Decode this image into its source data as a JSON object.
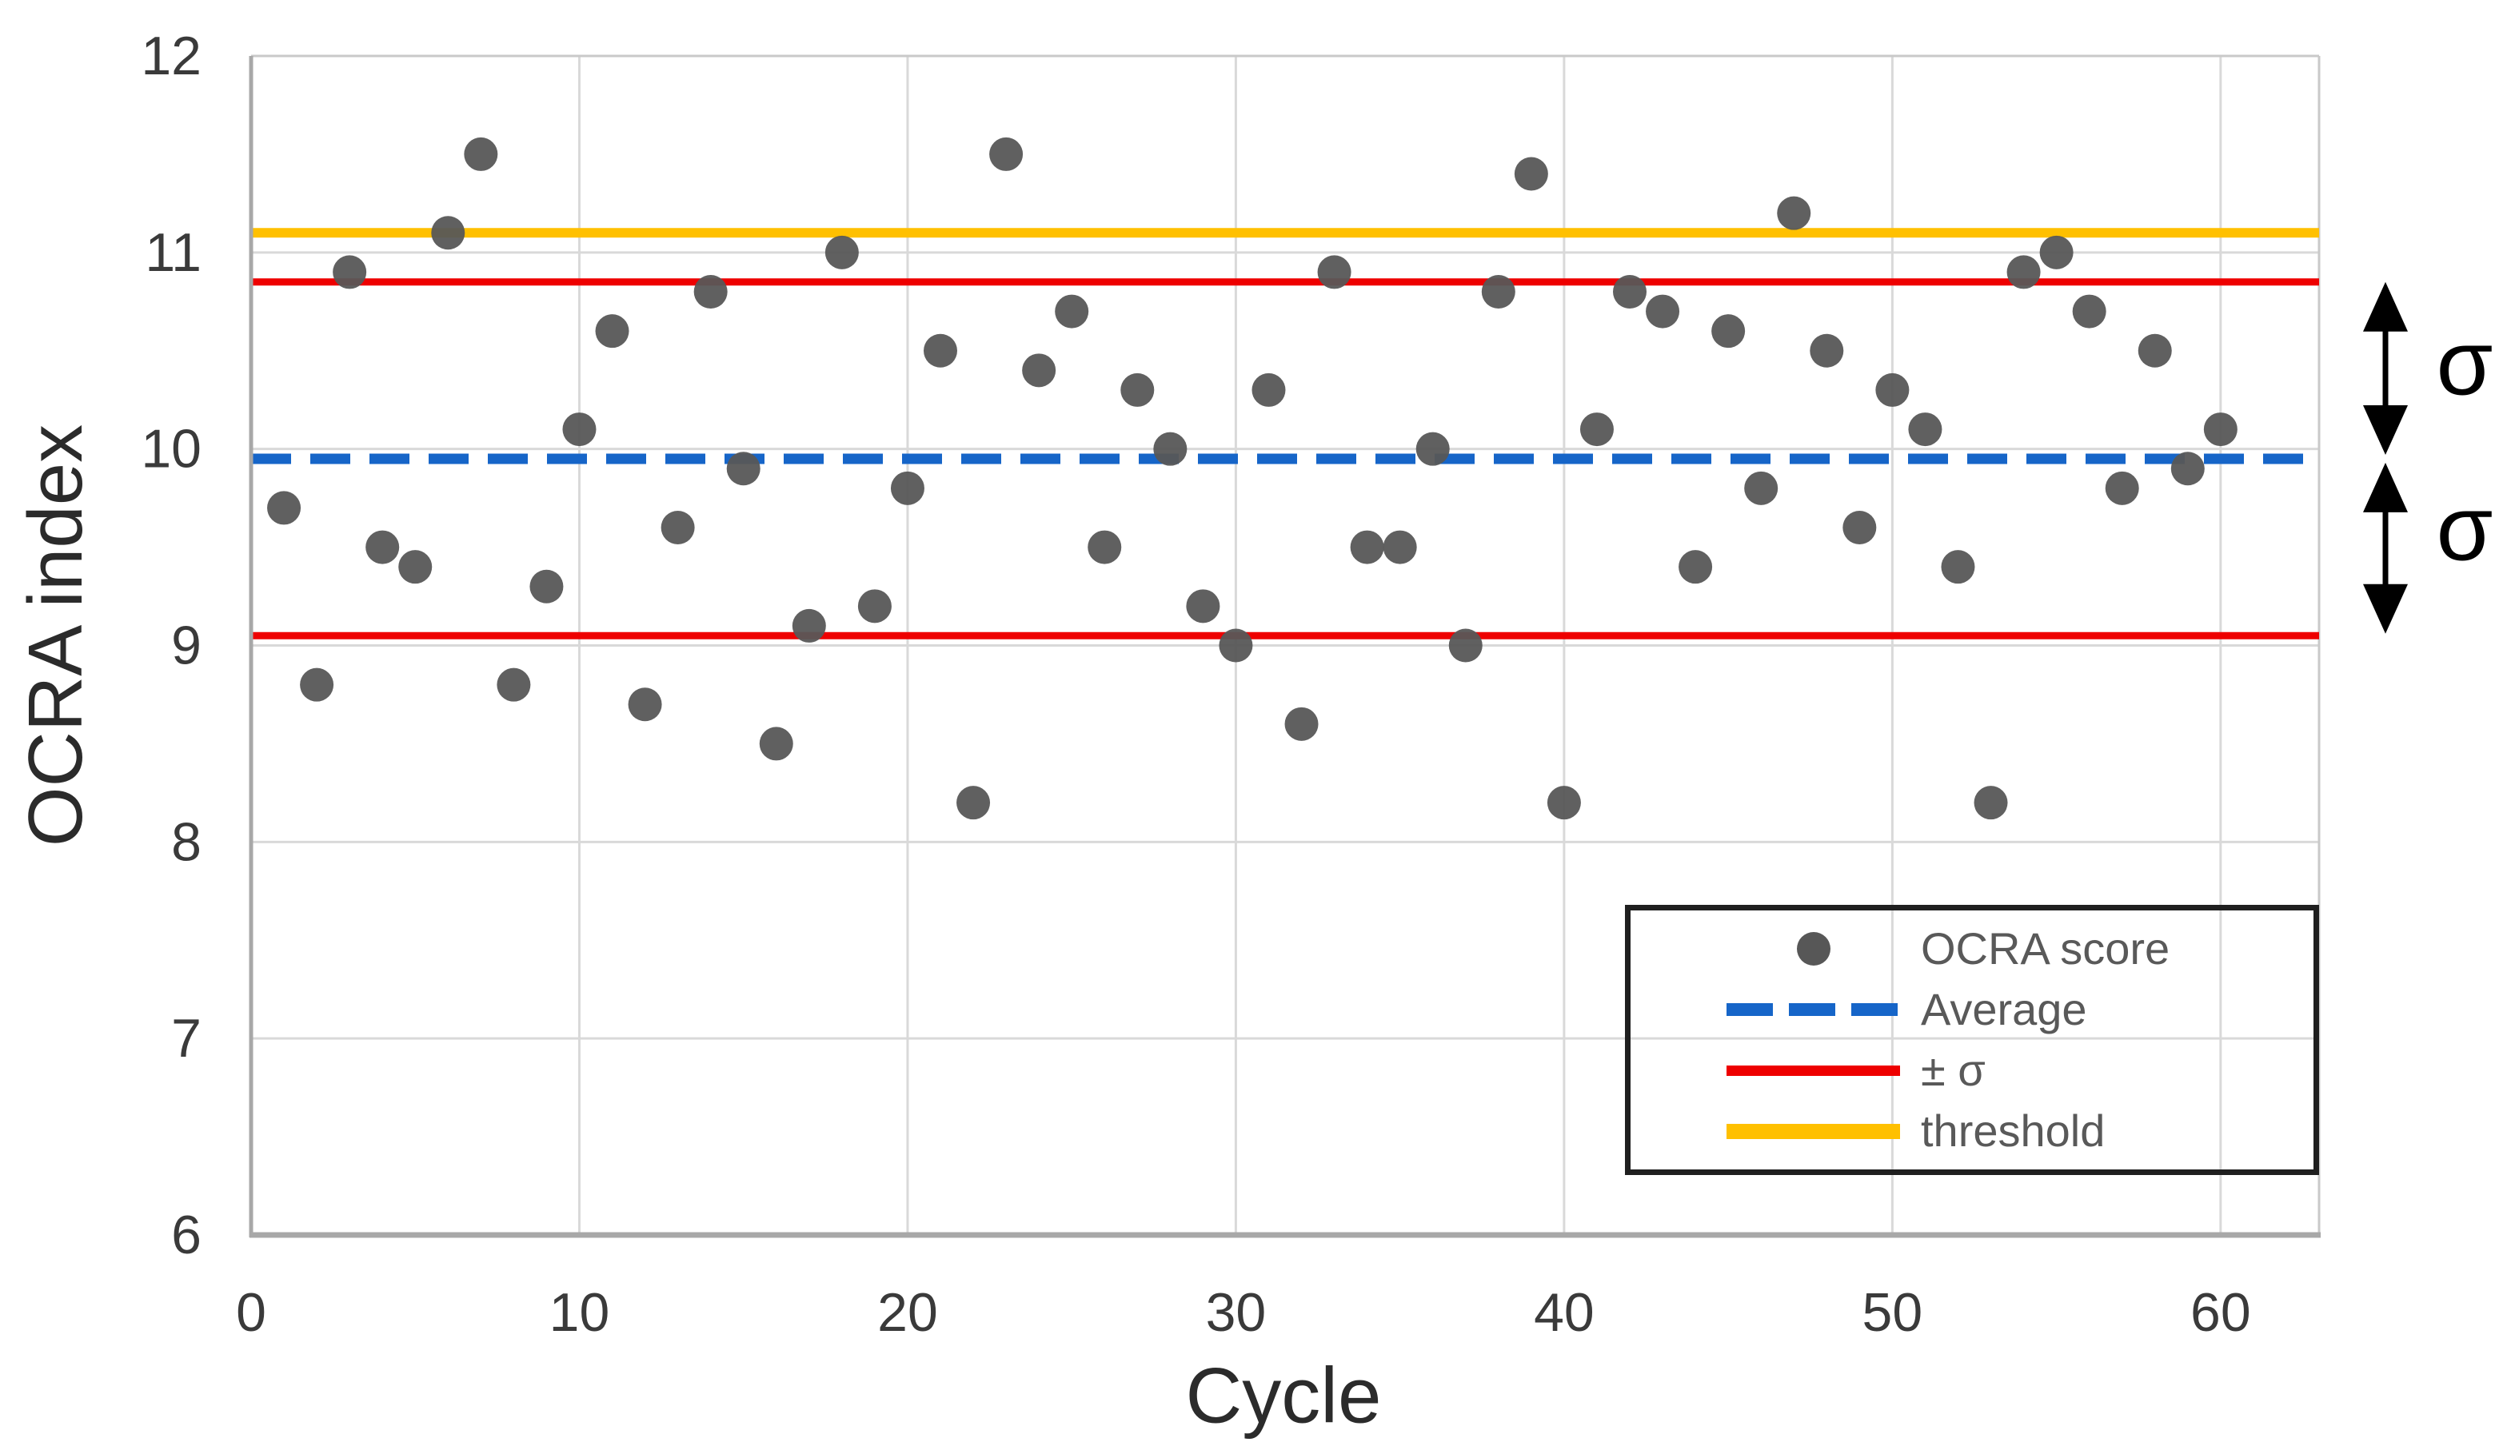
{
  "chart_data": {
    "type": "scatter",
    "title": "",
    "xlabel": "Cycle",
    "ylabel": "OCRA index",
    "xlim": [
      0,
      63
    ],
    "ylim": [
      6,
      12
    ],
    "x_ticks": [
      0,
      10,
      20,
      30,
      40,
      50,
      60
    ],
    "y_ticks": [
      6,
      7,
      8,
      9,
      10,
      11,
      12
    ],
    "grid": true,
    "series_name": "OCRA score",
    "points": [
      [
        1,
        9.7
      ],
      [
        2,
        8.8
      ],
      [
        3,
        10.9
      ],
      [
        4,
        9.5
      ],
      [
        5,
        9.4
      ],
      [
        6,
        11.1
      ],
      [
        7,
        11.5
      ],
      [
        8,
        8.8
      ],
      [
        9,
        9.3
      ],
      [
        10,
        10.1
      ],
      [
        11,
        10.6
      ],
      [
        12,
        8.7
      ],
      [
        13,
        9.6
      ],
      [
        14,
        10.8
      ],
      [
        15,
        9.9
      ],
      [
        16,
        8.5
      ],
      [
        17,
        9.1
      ],
      [
        18,
        11.0
      ],
      [
        19,
        9.2
      ],
      [
        20,
        9.8
      ],
      [
        21,
        10.5
      ],
      [
        22,
        8.2
      ],
      [
        23,
        11.5
      ],
      [
        24,
        10.4
      ],
      [
        25,
        10.7
      ],
      [
        26,
        9.5
      ],
      [
        27,
        10.3
      ],
      [
        28,
        10.0
      ],
      [
        29,
        9.2
      ],
      [
        30,
        9.0
      ],
      [
        31,
        10.3
      ],
      [
        32,
        8.6
      ],
      [
        33,
        10.9
      ],
      [
        34,
        9.5
      ],
      [
        35,
        9.5
      ],
      [
        36,
        10.0
      ],
      [
        37,
        9.0
      ],
      [
        38,
        10.8
      ],
      [
        39,
        11.4
      ],
      [
        40,
        8.2
      ],
      [
        41,
        10.1
      ],
      [
        42,
        10.8
      ],
      [
        43,
        10.7
      ],
      [
        44,
        9.4
      ],
      [
        45,
        10.6
      ],
      [
        46,
        9.8
      ],
      [
        47,
        11.2
      ],
      [
        48,
        10.5
      ],
      [
        49,
        9.6
      ],
      [
        50,
        10.3
      ],
      [
        51,
        10.1
      ],
      [
        52,
        9.4
      ],
      [
        53,
        8.2
      ],
      [
        54,
        10.9
      ],
      [
        55,
        11.0
      ],
      [
        56,
        10.7
      ],
      [
        57,
        9.8
      ],
      [
        58,
        10.5
      ],
      [
        59,
        9.9
      ],
      [
        60,
        10.1
      ]
    ],
    "reference_lines": {
      "average": 9.95,
      "sigma": 0.9,
      "upper_sigma": 10.85,
      "lower_sigma": 9.05,
      "threshold": 11.1
    },
    "legend_position": "bottom-right"
  },
  "colors": {
    "point": "#575757",
    "average": "#1665c8",
    "sigma_band": "#ee0000",
    "threshold": "#ffc000",
    "gridline": "#d9d9d9",
    "plot_border": "#c9c9c9",
    "axis": "#a8a8a8",
    "tick_text": "#3a3a3a",
    "legend_text": "#595959",
    "legend_border": "#1f1f1f",
    "annotation": "#000000"
  },
  "legend": {
    "entries": [
      {
        "label": "OCRA score",
        "marker": "dot"
      },
      {
        "label": "Average",
        "marker": "dashed-line"
      },
      {
        "label": "± σ",
        "marker": "solid-line-red"
      },
      {
        "label": "threshold",
        "marker": "solid-line-yellow"
      }
    ]
  },
  "annotations": {
    "sigma_upper": {
      "label": "σ",
      "arrow_from": 10.85,
      "arrow_to": 9.97
    },
    "sigma_lower": {
      "label": "σ",
      "arrow_from": 9.93,
      "arrow_to": 9.06
    }
  }
}
